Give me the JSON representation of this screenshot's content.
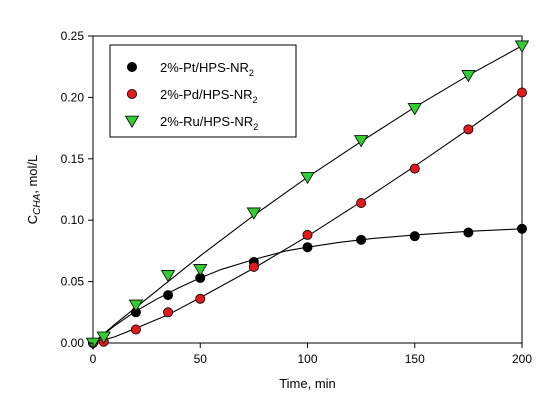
{
  "chart_data": {
    "type": "scatter",
    "xlabel": "Time, min",
    "ylabel": {
      "main": "C",
      "sub": "CHA",
      "suffix": ", mol/L"
    },
    "xlim": [
      0,
      200
    ],
    "ylim": [
      0,
      0.25
    ],
    "xticks": [
      0,
      50,
      100,
      150,
      200
    ],
    "yticks": [
      0.0,
      0.05,
      0.1,
      0.15,
      0.2,
      0.25
    ],
    "ytick_labels": [
      "0.00",
      "0.05",
      "0.10",
      "0.15",
      "0.20",
      "0.25"
    ],
    "grid": false,
    "legend_position": "top-left",
    "series": [
      {
        "name": "2%-Pt/HPS-NR",
        "name_sub": "2",
        "marker": "circle",
        "color": "#000000",
        "x": [
          0,
          20,
          35,
          50,
          75,
          100,
          125,
          150,
          175,
          200
        ],
        "y": [
          0.0,
          0.025,
          0.039,
          0.053,
          0.066,
          0.078,
          0.084,
          0.087,
          0.09,
          0.093
        ],
        "fit": [
          [
            0,
            0
          ],
          [
            10,
            0.014
          ],
          [
            20,
            0.026
          ],
          [
            30,
            0.036
          ],
          [
            40,
            0.045
          ],
          [
            50,
            0.053
          ],
          [
            60,
            0.06
          ],
          [
            75,
            0.068
          ],
          [
            90,
            0.075
          ],
          [
            100,
            0.078
          ],
          [
            115,
            0.082
          ],
          [
            130,
            0.085
          ],
          [
            150,
            0.088
          ],
          [
            175,
            0.091
          ],
          [
            200,
            0.093
          ]
        ]
      },
      {
        "name": "2%-Pd/HPS-NR",
        "name_sub": "2",
        "marker": "circle",
        "color": "#e31a1c",
        "x": [
          0,
          5,
          20,
          35,
          50,
          75,
          100,
          125,
          150,
          175,
          200
        ],
        "y": [
          0.0,
          0.001,
          0.011,
          0.025,
          0.036,
          0.062,
          0.088,
          0.114,
          0.142,
          0.174,
          0.204
        ],
        "fit": [
          [
            0,
            0
          ],
          [
            10,
            0.005
          ],
          [
            20,
            0.012
          ],
          [
            35,
            0.023
          ],
          [
            50,
            0.037
          ],
          [
            75,
            0.061
          ],
          [
            100,
            0.087
          ],
          [
            125,
            0.115
          ],
          [
            150,
            0.144
          ],
          [
            175,
            0.174
          ],
          [
            200,
            0.205
          ]
        ]
      },
      {
        "name": "2%-Ru/HPS-NR",
        "name_sub": "2",
        "marker": "triangle-down",
        "color": "#33cc33",
        "x": [
          0,
          5,
          20,
          35,
          50,
          75,
          100,
          125,
          150,
          175,
          200
        ],
        "y": [
          0.0,
          0.005,
          0.031,
          0.055,
          0.06,
          0.106,
          0.135,
          0.165,
          0.191,
          0.218,
          0.242
        ],
        "fit": [
          [
            0,
            0
          ],
          [
            10,
            0.015
          ],
          [
            20,
            0.029
          ],
          [
            35,
            0.05
          ],
          [
            50,
            0.071
          ],
          [
            75,
            0.104
          ],
          [
            100,
            0.135
          ],
          [
            125,
            0.164
          ],
          [
            150,
            0.192
          ],
          [
            175,
            0.218
          ],
          [
            200,
            0.242
          ]
        ]
      }
    ]
  }
}
